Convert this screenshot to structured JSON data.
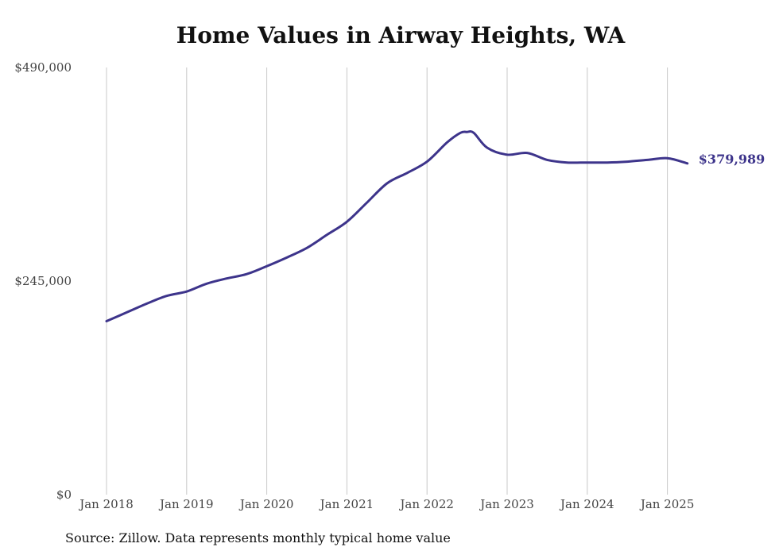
{
  "chart_data": {
    "type": "line",
    "title": "Home Values in Airway Heights, WA",
    "source": "Source: Zillow. Data represents monthly typical home value",
    "ylim": [
      0,
      490000
    ],
    "yticks": [
      "$0",
      "$245,000",
      "$490,000"
    ],
    "ytick_values": [
      0,
      245000,
      490000
    ],
    "xticks": [
      "Jan 2018",
      "Jan 2019",
      "Jan 2020",
      "Jan 2021",
      "Jan 2022",
      "Jan 2023",
      "Jan 2024",
      "Jan 2025"
    ],
    "xtick_values": [
      "2018-01",
      "2019-01",
      "2020-01",
      "2021-01",
      "2022-01",
      "2023-01",
      "2024-01",
      "2025-01"
    ],
    "grid": "vertical",
    "line_color": "#3d348b",
    "end_label": "$379,989",
    "series": [
      {
        "x": [
          "2018-01",
          "2018-04",
          "2018-07",
          "2018-10",
          "2019-01",
          "2019-04",
          "2019-07",
          "2019-10",
          "2020-01",
          "2020-04",
          "2020-07",
          "2020-10",
          "2021-01",
          "2021-04",
          "2021-07",
          "2021-10",
          "2022-01",
          "2022-04",
          "2022-06",
          "2022-07",
          "2022-08",
          "2022-10",
          "2023-01",
          "2023-04",
          "2023-07",
          "2023-10",
          "2024-01",
          "2024-04",
          "2024-07",
          "2024-10",
          "2025-01",
          "2025-04"
        ],
        "values": [
          199000,
          209000,
          219000,
          228000,
          233000,
          242000,
          248000,
          253000,
          262000,
          272000,
          283000,
          298000,
          313000,
          335000,
          357000,
          369000,
          382000,
          404000,
          415000,
          416000,
          415000,
          398000,
          390000,
          392000,
          384000,
          381000,
          381000,
          381000,
          382000,
          384000,
          386000,
          379989
        ]
      }
    ]
  }
}
